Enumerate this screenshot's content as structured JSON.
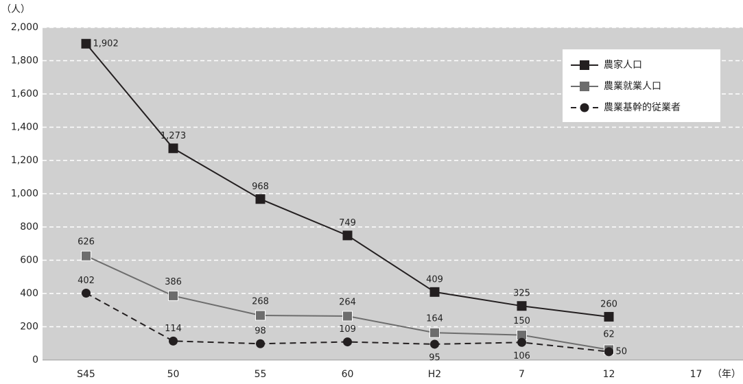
{
  "chart_data": {
    "type": "line",
    "ylabel": "（人）",
    "xlabel": "（年）",
    "categories": [
      "S45",
      "50",
      "55",
      "60",
      "H2",
      "7",
      "12",
      "17"
    ],
    "ylim": [
      0,
      2000
    ],
    "yticks": [
      0,
      200,
      400,
      600,
      800,
      {
        "value": 1000,
        "label": "1,000"
      },
      {
        "value": 1200,
        "label": "1,200"
      },
      {
        "value": 1400,
        "label": "1,400"
      },
      {
        "value": 1600,
        "label": "1,600"
      },
      {
        "value": 1800,
        "label": "1,800"
      },
      {
        "value": 2000,
        "label": "2,000"
      }
    ],
    "grid": true,
    "legend": "upper right",
    "series": [
      {
        "name": "農家人口",
        "color": "#231f20",
        "marker": "square",
        "line_style": "solid",
        "values": [
          1902,
          1273,
          968,
          749,
          409,
          325,
          260,
          null
        ],
        "value_labels": [
          "1,902",
          "1,273",
          "968",
          "749",
          "409",
          "325",
          "260",
          null
        ]
      },
      {
        "name": "農業就業人口",
        "color": "#6d6d6d",
        "marker": "square",
        "line_style": "solid",
        "values": [
          626,
          386,
          268,
          264,
          164,
          150,
          62,
          null
        ]
      },
      {
        "name": "農業基幹的従業者",
        "color": "#231f20",
        "marker": "circle",
        "line_style": "dashed",
        "values": [
          402,
          114,
          98,
          109,
          95,
          106,
          50,
          null
        ]
      }
    ]
  }
}
